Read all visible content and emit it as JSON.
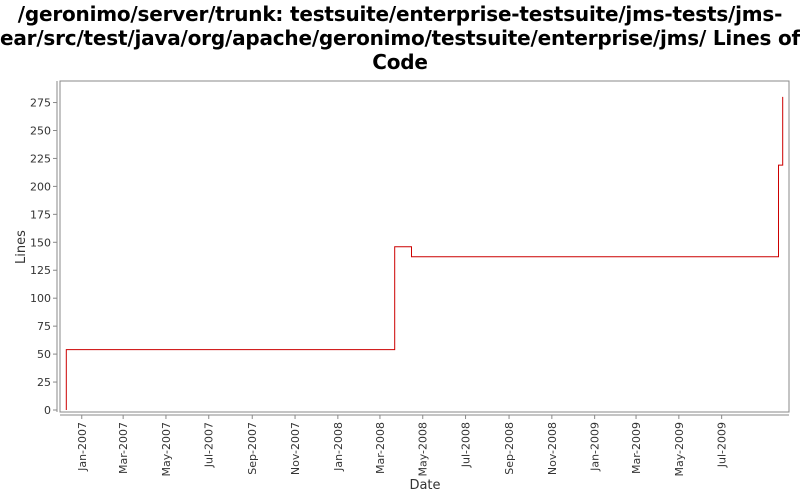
{
  "chart_data": {
    "type": "line",
    "title": "/geronimo/server/trunk: testsuite/enterprise-testsuite/jms-tests/jms-ear/src/test/java/org/apache/geronimo/testsuite/enterprise/jms/ Lines of Code",
    "xlabel": "Date",
    "ylabel": "Lines",
    "ylim": [
      0,
      288
    ],
    "xlim": [
      "2006-12-01",
      "2009-10-05"
    ],
    "yticks": [
      0,
      25,
      50,
      75,
      100,
      125,
      150,
      175,
      200,
      225,
      250,
      275
    ],
    "xticks": [
      {
        "label": "Jan-2007",
        "date": "2007-01-01"
      },
      {
        "label": "Mar-2007",
        "date": "2007-03-01"
      },
      {
        "label": "May-2007",
        "date": "2007-05-01"
      },
      {
        "label": "Jul-2007",
        "date": "2007-07-01"
      },
      {
        "label": "Sep-2007",
        "date": "2007-09-01"
      },
      {
        "label": "Nov-2007",
        "date": "2007-11-01"
      },
      {
        "label": "Jan-2008",
        "date": "2008-01-01"
      },
      {
        "label": "Mar-2008",
        "date": "2008-03-01"
      },
      {
        "label": "May-2008",
        "date": "2008-05-01"
      },
      {
        "label": "Jul-2008",
        "date": "2008-07-01"
      },
      {
        "label": "Sep-2008",
        "date": "2008-09-01"
      },
      {
        "label": "Nov-2008",
        "date": "2008-11-01"
      },
      {
        "label": "Jan-2009",
        "date": "2009-01-01"
      },
      {
        "label": "Mar-2009",
        "date": "2009-03-01"
      },
      {
        "label": "May-2009",
        "date": "2009-05-01"
      },
      {
        "label": "Jul-2009",
        "date": "2009-07-01"
      }
    ],
    "grid": false,
    "step": true,
    "series": [
      {
        "color": "#cc0000",
        "points": [
          {
            "x": "2006-12-10",
            "y": 0
          },
          {
            "x": "2006-12-10",
            "y": 54
          },
          {
            "x": "2008-03-22",
            "y": 146
          },
          {
            "x": "2008-04-15",
            "y": 137
          },
          {
            "x": "2009-09-20",
            "y": 219
          },
          {
            "x": "2009-09-26",
            "y": 280
          }
        ]
      }
    ]
  }
}
